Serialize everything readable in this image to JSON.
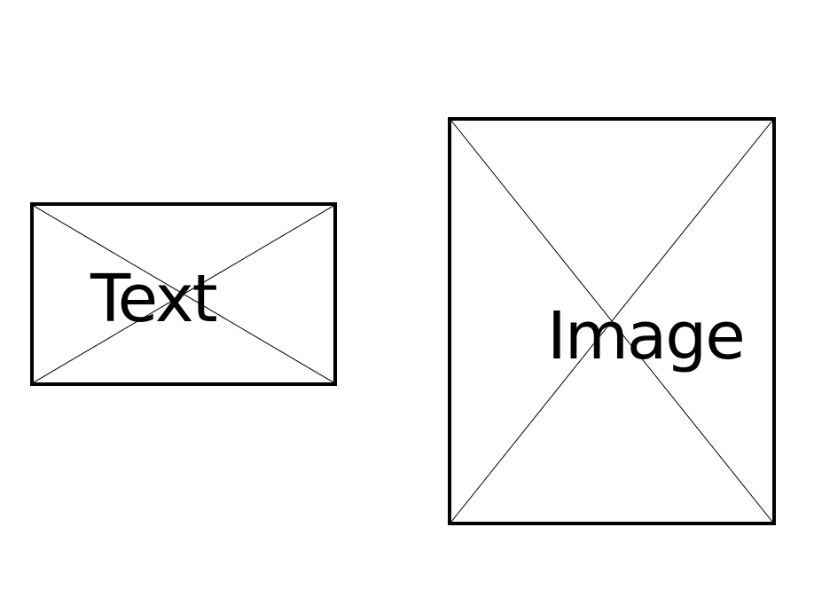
{
  "placeholders": {
    "text": {
      "label": "Text"
    },
    "image": {
      "label": "Image"
    }
  }
}
